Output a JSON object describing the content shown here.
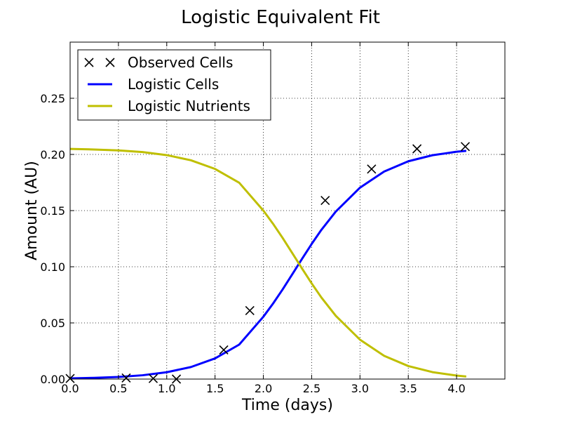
{
  "chart_data": {
    "type": "line",
    "title": "Logistic Equivalent Fit",
    "xlabel": "Time (days)",
    "ylabel": "Amount (AU)",
    "xlim": [
      0.0,
      4.5
    ],
    "ylim": [
      0.0,
      0.3
    ],
    "xticks": [
      0.0,
      0.5,
      1.0,
      1.5,
      2.0,
      2.5,
      3.0,
      3.5,
      4.0
    ],
    "xtick_labels": [
      "0.0",
      "0.5",
      "1.0",
      "1.5",
      "2.0",
      "2.5",
      "3.0",
      "3.5",
      "4.0"
    ],
    "yticks": [
      0.0,
      0.05,
      0.1,
      0.15,
      0.2,
      0.25
    ],
    "ytick_labels": [
      "0.00",
      "0.05",
      "0.10",
      "0.15",
      "0.20",
      "0.25"
    ],
    "grid": true,
    "legend_position": "top-left",
    "series": [
      {
        "name": "Observed Cells",
        "style": "markers",
        "color": "#000000",
        "x": [
          0.0,
          0.58,
          0.86,
          1.1,
          1.59,
          1.86,
          2.64,
          3.12,
          3.59,
          4.09
        ],
        "y": [
          0.0005,
          0.001,
          0.0005,
          0.0,
          0.026,
          0.061,
          0.159,
          0.187,
          0.205,
          0.207
        ]
      },
      {
        "name": "Logistic Cells",
        "style": "line",
        "color": "#0000ff",
        "x": [
          0.0,
          0.25,
          0.5,
          0.75,
          1.0,
          1.25,
          1.5,
          1.75,
          2.0,
          2.1,
          2.2,
          2.3,
          2.4,
          2.5,
          2.6,
          2.75,
          3.0,
          3.25,
          3.5,
          3.75,
          4.0,
          4.1
        ],
        "y": [
          0.0006,
          0.0011,
          0.0019,
          0.0034,
          0.0061,
          0.0107,
          0.0184,
          0.0307,
          0.0555,
          0.0672,
          0.0799,
          0.0934,
          0.107,
          0.1203,
          0.1328,
          0.1492,
          0.1704,
          0.1848,
          0.1939,
          0.1993,
          0.2024,
          0.2032
        ]
      },
      {
        "name": "Logistic Nutrients",
        "style": "line",
        "color": "#bfbf00",
        "x": [
          0.0,
          0.25,
          0.5,
          0.75,
          1.0,
          1.25,
          1.5,
          1.75,
          2.0,
          2.1,
          2.2,
          2.3,
          2.4,
          2.5,
          2.6,
          2.75,
          3.0,
          3.25,
          3.5,
          3.75,
          4.0,
          4.1
        ],
        "y": [
          0.2049,
          0.2044,
          0.2036,
          0.2021,
          0.1994,
          0.1948,
          0.1871,
          0.1748,
          0.15,
          0.1383,
          0.1256,
          0.1121,
          0.0985,
          0.0852,
          0.0727,
          0.0563,
          0.0351,
          0.0207,
          0.0116,
          0.0062,
          0.0031,
          0.0023
        ]
      }
    ]
  }
}
